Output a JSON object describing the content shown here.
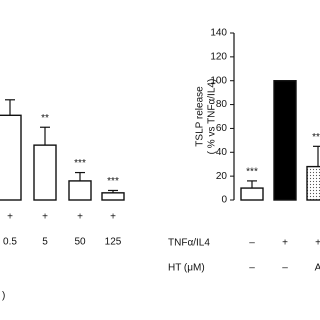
{
  "chart_data": [
    {
      "type": "bar",
      "categories": [
        "0.5",
        "5",
        "50",
        "125"
      ],
      "conditions": [
        {
          "values": [
            "+",
            "+",
            "+",
            "+"
          ]
        }
      ],
      "values": [
        71,
        46,
        16,
        6
      ],
      "errors": [
        13,
        15,
        7,
        2
      ],
      "significance": [
        null,
        "**",
        "***",
        "***"
      ],
      "fills": [
        "white",
        "white",
        "white",
        "white"
      ],
      "ylim": [
        0,
        140
      ],
      "panel_label": ")"
    },
    {
      "type": "bar",
      "y_label": [
        "TSLP release",
        "( % vs TNFα/IL4)"
      ],
      "conditions": [
        {
          "label": "TNFα/IL4",
          "values": [
            "–",
            "+",
            "+"
          ]
        },
        {
          "label": "HT (μM)",
          "values": [
            "–",
            "–",
            "A"
          ]
        }
      ],
      "values": [
        10,
        100,
        28
      ],
      "errors": [
        6,
        0,
        17
      ],
      "significance": [
        "***",
        null,
        "***"
      ],
      "fills": [
        "white",
        "black",
        "dotted"
      ],
      "ylim": [
        0,
        140
      ],
      "yticks": [
        0,
        20,
        40,
        60,
        80,
        100,
        120,
        140
      ]
    }
  ]
}
